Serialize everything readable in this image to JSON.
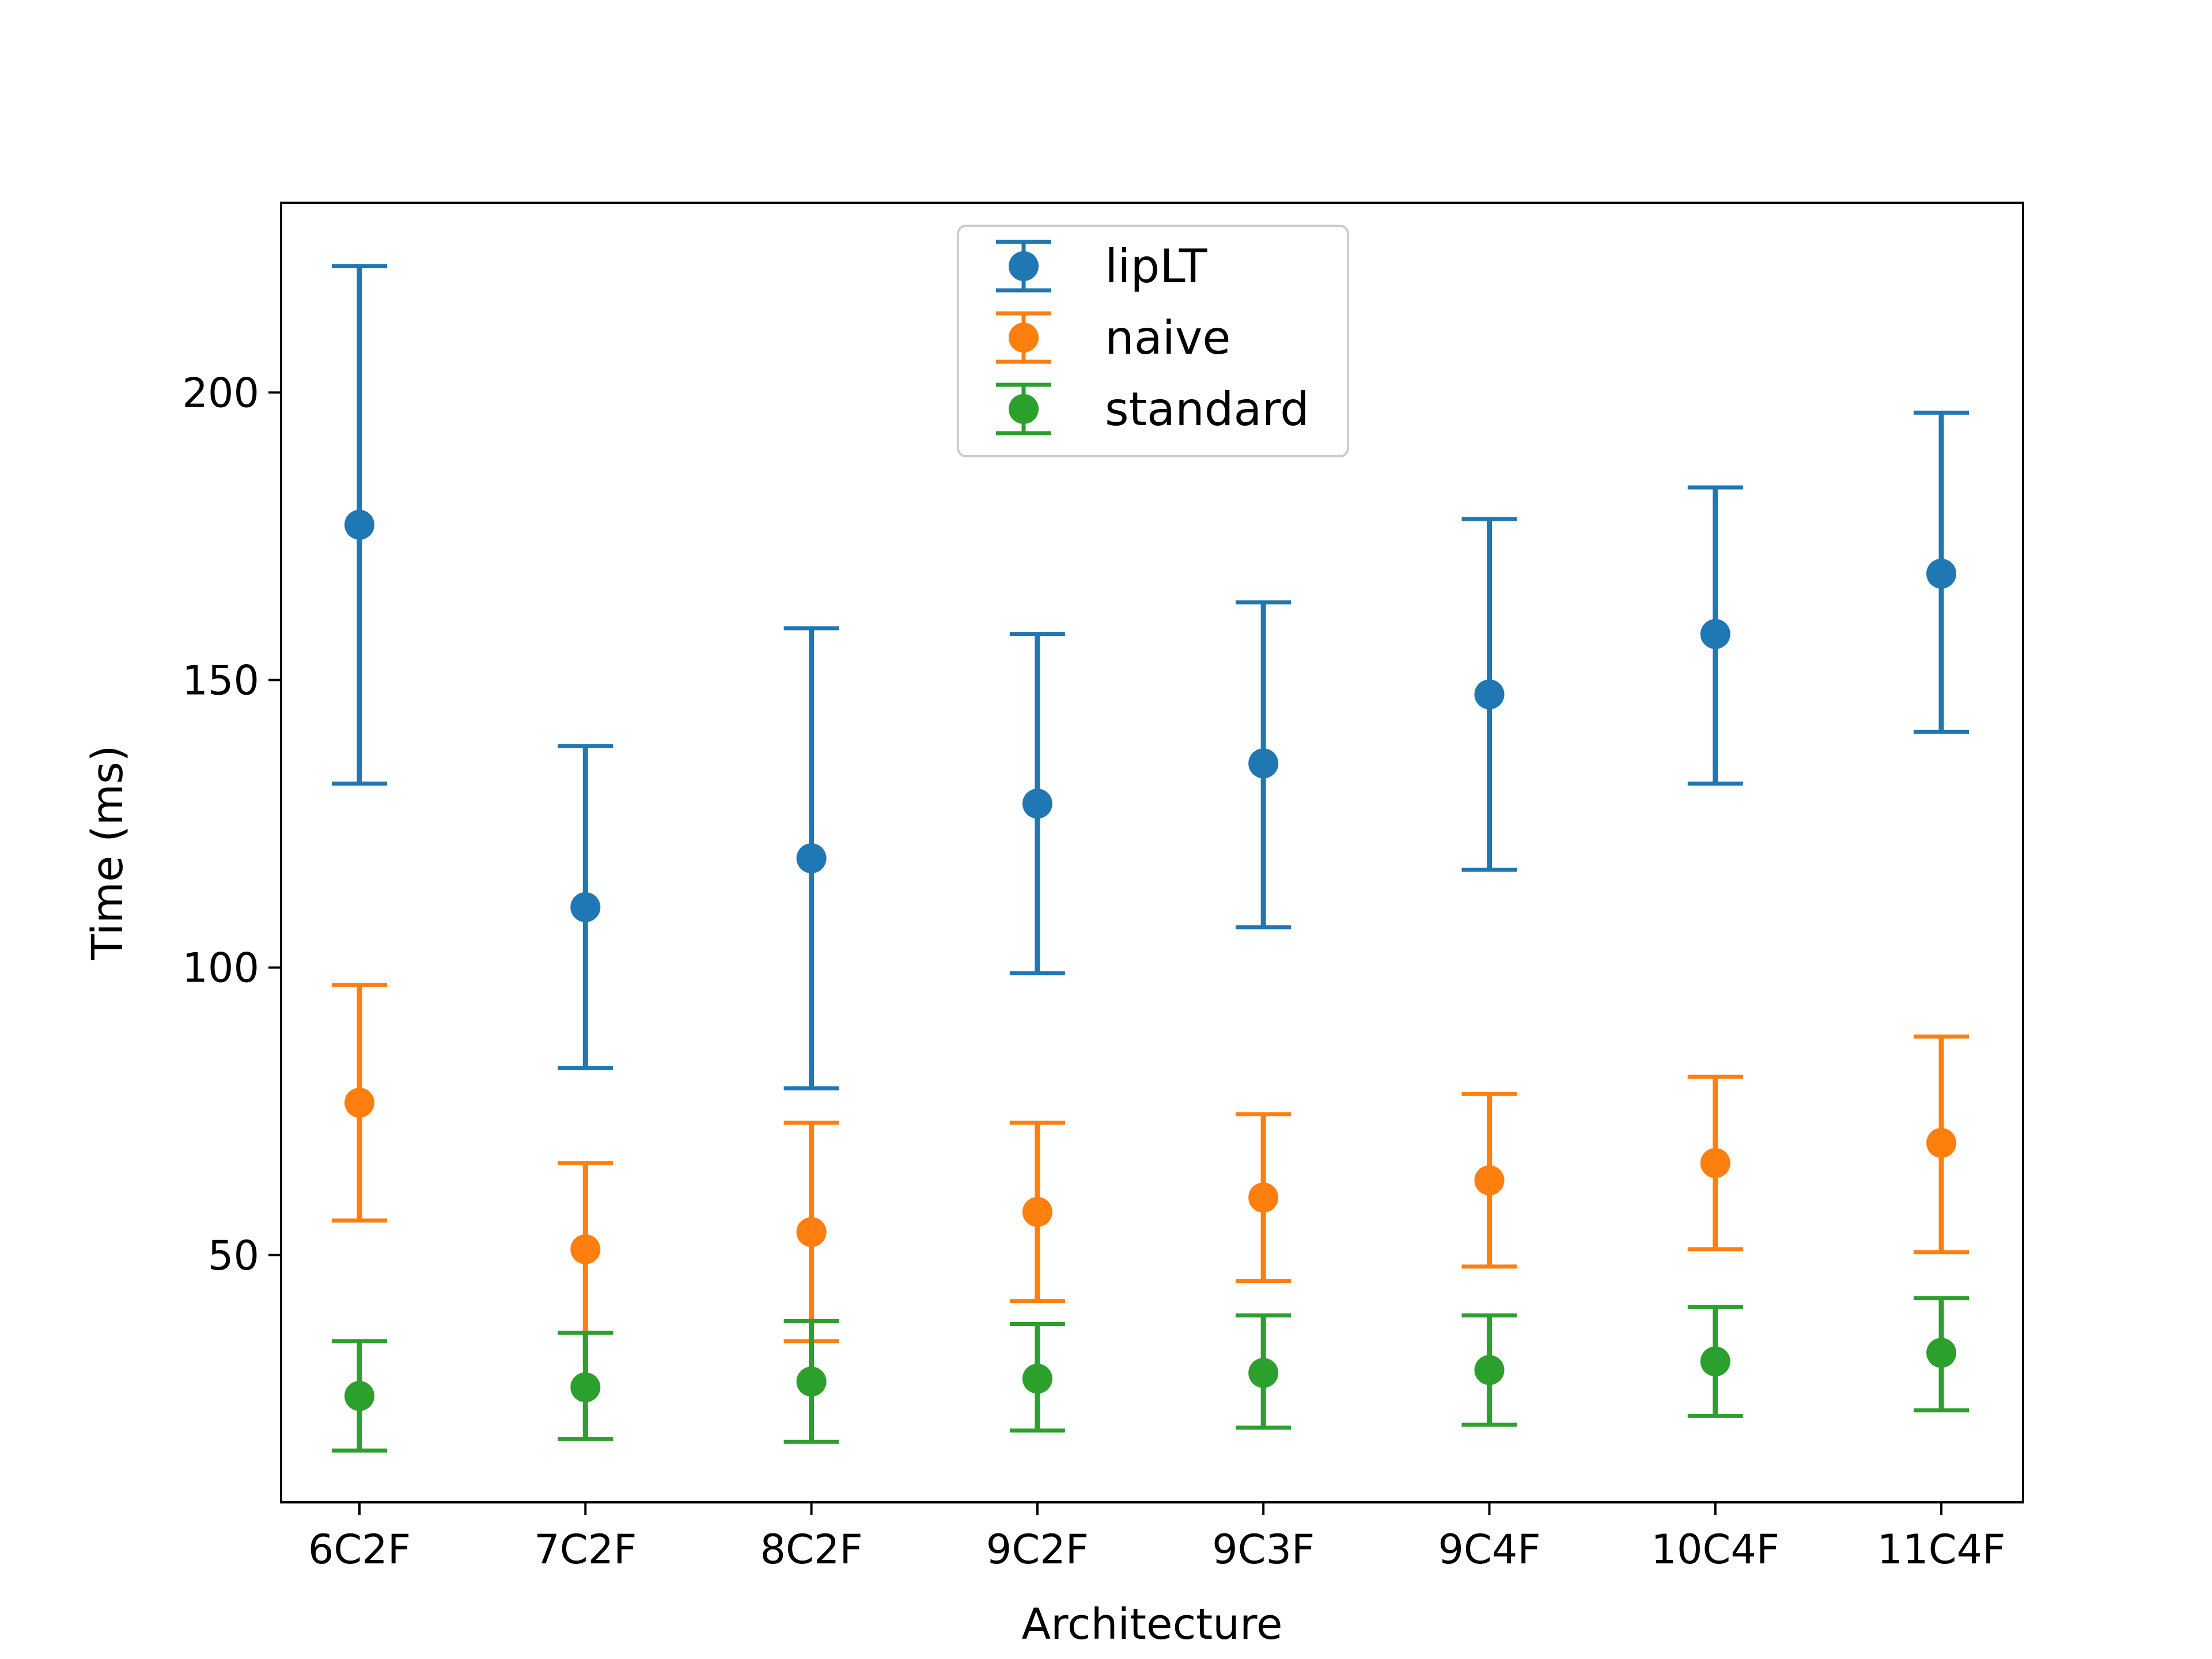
{
  "chart_data": {
    "type": "errorbar",
    "title": "",
    "xlabel": "Architecture",
    "ylabel": "Time (ms)",
    "categories": [
      "6C2F",
      "7C2F",
      "8C2F",
      "9C2F",
      "9C3F",
      "9C4F",
      "10C4F",
      "11C4F"
    ],
    "ylim": [
      7,
      233
    ],
    "yticks": [
      50,
      100,
      150,
      200
    ],
    "ytick_labels": [
      "50",
      "100",
      "150",
      "200"
    ],
    "grid": false,
    "legend_position": "upper center",
    "series": [
      {
        "name": "lipLT",
        "color": "#1f77b4",
        "values": [
          177,
          110.5,
          119,
          128.5,
          135.5,
          147.5,
          158,
          168.5
        ],
        "lower": [
          132,
          82.5,
          79,
          99,
          107,
          117,
          132,
          141
        ],
        "upper": [
          222,
          138.5,
          159,
          158,
          163.5,
          178,
          183.5,
          196.5
        ]
      },
      {
        "name": "naive",
        "color": "#ff7f0e",
        "values": [
          76.5,
          51,
          54,
          57.5,
          60,
          63,
          66,
          69.5
        ],
        "lower": [
          56,
          36.5,
          35,
          42,
          45.5,
          48,
          51,
          50.5
        ],
        "upper": [
          97,
          66,
          73,
          73,
          74.5,
          78,
          81,
          88
        ]
      },
      {
        "name": "standard",
        "color": "#2ca02c",
        "values": [
          25.5,
          27,
          28,
          28.5,
          29.5,
          30,
          31.5,
          33
        ],
        "lower": [
          16,
          18,
          17.5,
          19.5,
          20,
          20.5,
          22,
          23
        ],
        "upper": [
          35,
          36.5,
          38.5,
          38,
          39.5,
          39.5,
          41,
          42.5
        ]
      }
    ]
  }
}
